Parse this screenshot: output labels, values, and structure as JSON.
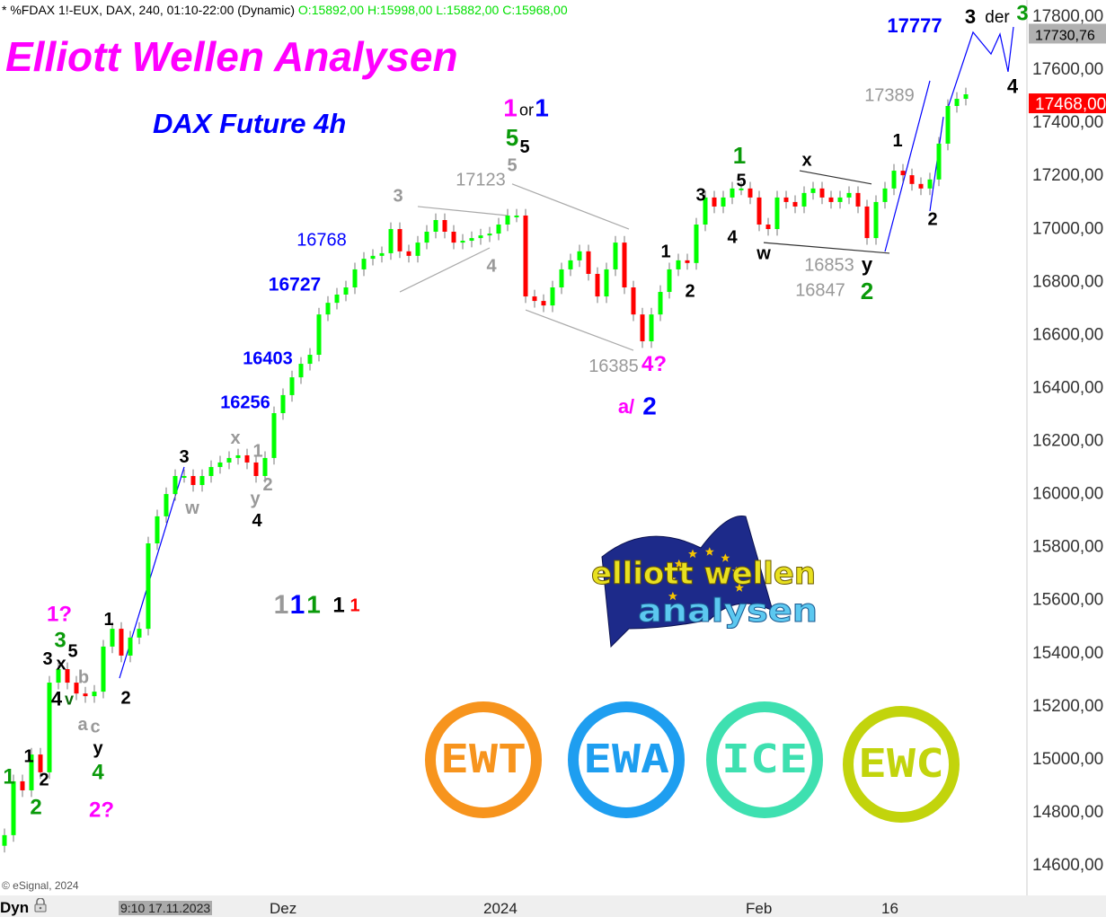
{
  "header": {
    "symbol_info": "* %FDAX 1!-EUX, DAX, 240, 01:10-22:00 (Dynamic)",
    "ohlc": "O:15892,00 H:15998,00 L:15882,00 C:15968,00"
  },
  "title": "Elliott Wellen Analysen",
  "subtitle": "DAX Future 4h",
  "copyright": "© eSignal, 2024",
  "xaxis": {
    "mode_label": "Dyn",
    "lock_icon": "lock-icon",
    "cursor_label": "9:10 17.11.2023",
    "labels": [
      {
        "text": "Dez"
      },
      {
        "text": "2024"
      },
      {
        "text": "Feb"
      },
      {
        "text": "16"
      }
    ]
  },
  "logos": {
    "main_logo": "elliott wellen analysen",
    "circles": [
      {
        "text": "EWT",
        "color": "#f7941d"
      },
      {
        "text": "EWA",
        "color": "#1e9ef0"
      },
      {
        "text": "ICE",
        "color": "#3ee0b0"
      },
      {
        "text": "EWC",
        "color": "#c2d40c"
      }
    ]
  },
  "chart_data": {
    "type": "candlestick",
    "ylim": [
      14500,
      17850
    ],
    "yticks": [
      17800,
      17600,
      17400,
      17200,
      17000,
      16800,
      16600,
      16400,
      16200,
      16000,
      15800,
      15600,
      15400,
      15200,
      15000,
      14800,
      14600
    ],
    "ytick_suffix": ",00",
    "price_markers": [
      {
        "value": "17730,76",
        "price": 17730.76,
        "bg": "#b0b0b0",
        "color": "#000"
      },
      {
        "value": "17468,00",
        "price": 17468,
        "bg": "#ff0000",
        "color": "#fff"
      }
    ],
    "up_color": "#00ff00",
    "down_color": "#ff0000",
    "closes": [
      14709,
      14912,
      14878,
      15013,
      14946,
      15284,
      15335,
      15284,
      15243,
      15233,
      15250,
      15420,
      15487,
      15386,
      15454,
      15487,
      15809,
      15911,
      15995,
      16063,
      16063,
      16029,
      16063,
      16097,
      16114,
      16131,
      16141,
      16114,
      16063,
      16131,
      16300,
      16368,
      16435,
      16486,
      16520,
      16672,
      16716,
      16747,
      16774,
      16842,
      16882,
      16893,
      16903,
      16994,
      16910,
      16893,
      16943,
      16984,
      17028,
      16984,
      16943,
      16950,
      16960,
      16970,
      16977,
      17011,
      17045,
      17045,
      16740,
      16723,
      16706,
      16774,
      16842,
      16876,
      16910,
      16825,
      16740,
      16842,
      16943,
      16774,
      16672,
      16571,
      16672,
      16757,
      16842,
      16876,
      16866,
      17011,
      17113,
      17079,
      17113,
      17147,
      17147,
      17113,
      17011,
      16994,
      17113,
      17096,
      17079,
      17130,
      17147,
      17113,
      17096,
      17113,
      17130,
      17079,
      16960,
      17096,
      17147,
      17214,
      17197,
      17164,
      17147,
      17181,
      17316,
      17458,
      17485,
      17502
    ],
    "lines": [
      {
        "color": "#0000ff",
        "points": [
          [
            12.8,
            15301
          ],
          [
            20,
            16097
          ]
        ]
      },
      {
        "color": "#0000ff",
        "points": [
          [
            98,
            16909
          ],
          [
            103,
            17553
          ]
        ]
      },
      {
        "color": "#0000ff",
        "points": [
          [
            103,
            17062
          ],
          [
            104.5,
            17417
          ]
        ]
      },
      {
        "color": "#0000ff",
        "points": [
          [
            105,
            17451
          ],
          [
            107.8,
            17736
          ],
          [
            109.8,
            17654
          ],
          [
            110.8,
            17729
          ],
          [
            111.7,
            17587
          ],
          [
            112.3,
            17756
          ]
        ]
      },
      {
        "color": "#aaaaaa",
        "points": [
          [
            44,
            16757
          ],
          [
            54,
            16923
          ]
        ]
      },
      {
        "color": "#aaaaaa",
        "points": [
          [
            46,
            17079
          ],
          [
            56,
            17045
          ]
        ]
      },
      {
        "color": "#aaaaaa",
        "points": [
          [
            56.5,
            17164
          ],
          [
            69.5,
            16994
          ]
        ]
      },
      {
        "color": "#aaaaaa",
        "points": [
          [
            58,
            16689
          ],
          [
            70,
            16537
          ]
        ]
      },
      {
        "color": "#333333",
        "points": [
          [
            84.5,
            16943
          ],
          [
            98.5,
            16903
          ]
        ]
      },
      {
        "color": "#333333",
        "points": [
          [
            88.5,
            17214
          ],
          [
            96.5,
            17164
          ]
        ]
      }
    ],
    "annotations": [
      {
        "text": "3",
        "x": 107.5,
        "p": 17790,
        "c": "#000",
        "s": 22
      },
      {
        "text": "der",
        "x": 110.5,
        "p": 17790,
        "c": "#000",
        "s": 19,
        "n": 1
      },
      {
        "text": "3",
        "x": 113.3,
        "p": 17817,
        "c": "#0a9a0a",
        "s": 24
      },
      {
        "text": "17777",
        "x": 101.3,
        "p": 17756,
        "c": "#0000ff",
        "s": 22
      },
      {
        "text": "4",
        "x": 112.2,
        "p": 17526,
        "c": "#000",
        "s": 22
      },
      {
        "text": "17389",
        "x": 98.5,
        "p": 17495,
        "c": "#999",
        "s": 20,
        "n": 1
      },
      {
        "text": "1",
        "x": 99.4,
        "p": 17323,
        "c": "#000",
        "s": 20
      },
      {
        "text": "2",
        "x": 103.3,
        "p": 17028,
        "c": "#000",
        "s": 20
      },
      {
        "text": "x",
        "x": 89.3,
        "p": 17251,
        "c": "#000",
        "s": 20
      },
      {
        "text": "w",
        "x": 84.5,
        "p": 16899,
        "c": "#000",
        "s": 20
      },
      {
        "text": "16853",
        "x": 91.8,
        "p": 16855,
        "c": "#999",
        "s": 20,
        "n": 1
      },
      {
        "text": "y",
        "x": 96,
        "p": 16855,
        "c": "#000",
        "s": 22
      },
      {
        "text": "16847",
        "x": 90.8,
        "p": 16760,
        "c": "#999",
        "s": 20,
        "n": 1
      },
      {
        "text": "2",
        "x": 96,
        "p": 16767,
        "c": "#0a9a0a",
        "s": 26
      },
      {
        "text": "1",
        "x": 81.8,
        "p": 17265,
        "c": "#0a9a0a",
        "s": 26
      },
      {
        "text": "5",
        "x": 82,
        "p": 17194,
        "c": "#000",
        "s": 20
      },
      {
        "text": "3",
        "x": 77.5,
        "p": 17119,
        "c": "#000",
        "s": 20
      },
      {
        "text": "4",
        "x": 81,
        "p": 16960,
        "c": "#000",
        "s": 20
      },
      {
        "text": "1",
        "x": 73.6,
        "p": 16906,
        "c": "#000",
        "s": 20
      },
      {
        "text": "2",
        "x": 76.3,
        "p": 16757,
        "c": "#000",
        "s": 20
      },
      {
        "text": "1",
        "x": 56.3,
        "p": 17444,
        "c": "#ff00ff",
        "s": 28
      },
      {
        "text": "or",
        "x": 58.1,
        "p": 17438,
        "c": "#000",
        "s": 18,
        "n": 1
      },
      {
        "text": "1",
        "x": 59.8,
        "p": 17444,
        "c": "#0000ff",
        "s": 28
      },
      {
        "text": "5",
        "x": 56.5,
        "p": 17367,
        "c": "#0a9a0a",
        "s": 26
      },
      {
        "text": "5",
        "x": 56.5,
        "p": 17299,
        "c": "#000",
        "s": 20
      },
      {
        "text": "5",
        "x": 56.5,
        "p": 17231,
        "c": "#999",
        "s": 20
      },
      {
        "text": "17123",
        "x": 53.4,
        "p": 17177,
        "c": "#999",
        "s": 20,
        "n": 1
      },
      {
        "text": "3",
        "x": 43.8,
        "p": 17116,
        "c": "#999",
        "s": 20
      },
      {
        "text": "4",
        "x": 54.2,
        "p": 16852,
        "c": "#999",
        "s": 20
      },
      {
        "text": "16768",
        "x": 35.3,
        "p": 16950,
        "c": "#0000ff",
        "s": 20,
        "n": 1
      },
      {
        "text": "16727",
        "x": 32.3,
        "p": 16781,
        "c": "#0000ff",
        "s": 21
      },
      {
        "text": "16403",
        "x": 29.3,
        "p": 16503,
        "c": "#0000ff",
        "s": 20
      },
      {
        "text": "16256",
        "x": 26.8,
        "p": 16337,
        "c": "#0000ff",
        "s": 20
      },
      {
        "text": "16385",
        "x": 67.8,
        "p": 16473,
        "c": "#999",
        "s": 20,
        "n": 1
      },
      {
        "text": "4?",
        "x": 72.3,
        "p": 16480,
        "c": "#ff00ff",
        "s": 24
      },
      {
        "text": "a/",
        "x": 69.2,
        "p": 16320,
        "c": "#ff00ff",
        "s": 22
      },
      {
        "text": "2",
        "x": 71.8,
        "p": 16320,
        "c": "#0000ff",
        "s": 28
      },
      {
        "text": "3",
        "x": 20,
        "p": 16131,
        "c": "#000",
        "s": 20
      },
      {
        "text": "x",
        "x": 25.7,
        "p": 16202,
        "c": "#999",
        "s": 20
      },
      {
        "text": "1",
        "x": 28.2,
        "p": 16154,
        "c": "#999",
        "s": 20
      },
      {
        "text": "2",
        "x": 29.3,
        "p": 16026,
        "c": "#999",
        "s": 20
      },
      {
        "text": "y",
        "x": 28.1,
        "p": 15975,
        "c": "#999",
        "s": 20
      },
      {
        "text": "w",
        "x": 20.9,
        "p": 15938,
        "c": "#999",
        "s": 20
      },
      {
        "text": "4",
        "x": 28.1,
        "p": 15904,
        "c": "#000",
        "s": 20
      },
      {
        "text": "1?",
        "x": 6.1,
        "p": 15538,
        "c": "#ff00ff",
        "s": 24
      },
      {
        "text": "3",
        "x": 6.2,
        "p": 15467,
        "c": "#0a9a0a",
        "s": 24
      },
      {
        "text": "3",
        "x": 4.8,
        "p": 15369,
        "c": "#000",
        "s": 20
      },
      {
        "text": "5",
        "x": 6.2,
        "p": 15399,
        "c": "#000",
        "s": 20
      },
      {
        "text": "x",
        "x": 7.3,
        "p": 15352,
        "c": "#000",
        "s": 20
      },
      {
        "text": "b",
        "x": 8.8,
        "p": 15301,
        "c": "#999",
        "s": 20
      },
      {
        "text": "4",
        "x": 5.8,
        "p": 15217,
        "c": "#000",
        "s": 22
      },
      {
        "text": "v",
        "x": 7,
        "p": 15217,
        "c": "#0a6a0a",
        "s": 18
      },
      {
        "text": "1",
        "x": 11.6,
        "p": 15518,
        "c": "#000",
        "s": 20
      },
      {
        "text": "2",
        "x": 13.5,
        "p": 15223,
        "c": "#000",
        "s": 20
      },
      {
        "text": "a",
        "x": 8.7,
        "p": 15122,
        "c": "#999",
        "s": 20
      },
      {
        "text": "c",
        "x": 10.1,
        "p": 15115,
        "c": "#999",
        "s": 20
      },
      {
        "text": "y",
        "x": 10.4,
        "p": 15047,
        "c": "#000",
        "s": 20
      },
      {
        "text": "4",
        "x": 10.4,
        "p": 14949,
        "c": "#0a9a0a",
        "s": 24
      },
      {
        "text": "2?",
        "x": 10.8,
        "p": 14800,
        "c": "#ff00ff",
        "s": 24
      },
      {
        "text": "1",
        "x": 2.7,
        "p": 15003,
        "c": "#000",
        "s": 20
      },
      {
        "text": "2",
        "x": 4.4,
        "p": 14915,
        "c": "#000",
        "s": 20
      },
      {
        "text": "1",
        "x": 0.5,
        "p": 14925,
        "c": "#0a9a0a",
        "s": 24
      },
      {
        "text": "2",
        "x": 3.5,
        "p": 14810,
        "c": "#0a9a0a",
        "s": 24
      },
      {
        "text": "1",
        "x": 30.8,
        "p": 15572,
        "c": "#999",
        "s": 30
      },
      {
        "text": "1",
        "x": 32.6,
        "p": 15572,
        "c": "#0000ff",
        "s": 30
      },
      {
        "text": "1",
        "x": 34.4,
        "p": 15572,
        "c": "#0a9a0a",
        "s": 28
      },
      {
        "text": "1",
        "x": 37.2,
        "p": 15572,
        "c": "#000",
        "s": 24
      },
      {
        "text": "1",
        "x": 39,
        "p": 15572,
        "c": "#ff0000",
        "s": 20
      }
    ]
  }
}
